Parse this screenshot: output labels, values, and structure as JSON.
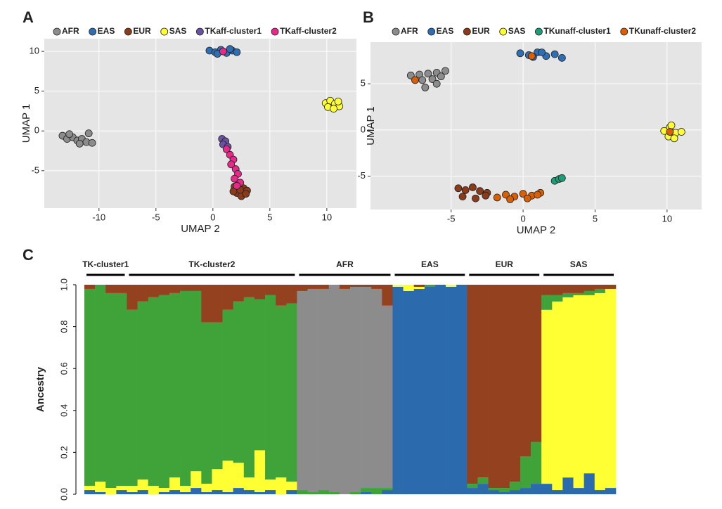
{
  "chart_data": [
    {
      "type": "scatter",
      "panel": "A",
      "xlabel": "UMAP 2",
      "ylabel": "UMAP 1",
      "grid": true,
      "xlim": [
        -14.8,
        12.6
      ],
      "ylim": [
        -9.7,
        11.6
      ],
      "xticks": [
        -10,
        -5,
        0,
        5,
        10
      ],
      "yticks": [
        -5,
        0,
        5,
        10
      ],
      "series": [
        {
          "name": "AFR",
          "color": "#8c8c8c",
          "x": [
            -13.2,
            -12.8,
            -12.3,
            -11.9,
            -11.5,
            -11.1,
            -10.9,
            -12.6,
            -11.7,
            -10.6
          ],
          "y": [
            -0.6,
            -1.0,
            -0.8,
            -1.2,
            -1.0,
            -1.4,
            -0.3,
            -0.4,
            -1.6,
            -1.5
          ]
        },
        {
          "name": "EAS",
          "color": "#2e6eb5",
          "x": [
            -0.3,
            0.2,
            0.7,
            1.2,
            1.7,
            2.1,
            0.4,
            1.5
          ],
          "y": [
            10.1,
            9.9,
            10.2,
            9.8,
            10.1,
            9.9,
            9.7,
            10.3
          ]
        },
        {
          "name": "EUR",
          "color": "#8b3a1a",
          "x": [
            1.9,
            2.3,
            2.7,
            3.0,
            2.1,
            2.5,
            2.9,
            2.4,
            1.8
          ],
          "y": [
            -7.0,
            -6.8,
            -7.2,
            -7.5,
            -7.8,
            -8.2,
            -7.9,
            -7.4,
            -7.6
          ]
        },
        {
          "name": "SAS",
          "color": "#ffff33",
          "x": [
            9.9,
            10.3,
            10.7,
            11.1,
            10.1,
            10.6,
            11.0
          ],
          "y": [
            3.5,
            3.8,
            3.4,
            3.1,
            3.0,
            2.8,
            3.7
          ]
        },
        {
          "name": "TKaff-cluster1",
          "color": "#6a51a3",
          "x": [
            0.8,
            1.1,
            0.9,
            1.3
          ],
          "y": [
            -1.0,
            -1.3,
            -1.7,
            -2.0
          ]
        },
        {
          "name": "TKaff-cluster2",
          "color": "#e7298a",
          "x": [
            1.2,
            1.5,
            1.8,
            1.6,
            2.0,
            2.2,
            1.9,
            2.4,
            2.1,
            0.9
          ],
          "y": [
            -2.3,
            -3.0,
            -3.6,
            -4.2,
            -4.8,
            -5.4,
            -6.0,
            -6.5,
            -6.9,
            10.0
          ]
        }
      ]
    },
    {
      "type": "scatter",
      "panel": "B",
      "xlabel": "UMAP 2",
      "ylabel": "UMAP 1",
      "grid": true,
      "xlim": [
        -10.6,
        12.4
      ],
      "ylim": [
        -8.6,
        9.5
      ],
      "xticks": [
        -5,
        0,
        5,
        10
      ],
      "yticks": [
        -5,
        0,
        5
      ],
      "series": [
        {
          "name": "AFR",
          "color": "#8c8c8c",
          "x": [
            -7.8,
            -7.2,
            -6.6,
            -6.0,
            -5.4,
            -7.0,
            -6.3,
            -5.7,
            -6.8,
            -6.0
          ],
          "y": [
            5.9,
            6.0,
            6.1,
            6.2,
            6.4,
            5.4,
            5.5,
            5.8,
            4.6,
            5.0
          ]
        },
        {
          "name": "EAS",
          "color": "#2e6eb5",
          "x": [
            -0.2,
            0.4,
            1.0,
            1.6,
            2.2,
            2.7,
            0.7,
            1.3
          ],
          "y": [
            8.3,
            8.1,
            8.4,
            8.0,
            8.2,
            7.8,
            7.9,
            8.4
          ]
        },
        {
          "name": "EUR",
          "color": "#8b3a1a",
          "x": [
            -4.5,
            -4.0,
            -3.5,
            -3.0,
            -2.5,
            -4.2,
            -3.3,
            -2.6
          ],
          "y": [
            -6.3,
            -6.5,
            -6.2,
            -6.6,
            -6.8,
            -7.2,
            -7.4,
            -7.1
          ]
        },
        {
          "name": "SAS",
          "color": "#ffff33",
          "x": [
            9.8,
            10.2,
            10.6,
            11.0,
            10.1,
            10.5,
            10.3
          ],
          "y": [
            -0.1,
            0.3,
            -0.3,
            -0.2,
            -0.7,
            -0.9,
            0.5
          ]
        },
        {
          "name": "TKunaff-cluster1",
          "color": "#1b9e77",
          "x": [
            2.2,
            2.5,
            2.7
          ],
          "y": [
            -5.5,
            -5.3,
            -5.2
          ]
        },
        {
          "name": "TKunaff-cluster2",
          "color": "#d95f02",
          "x": [
            -1.8,
            -1.2,
            -0.6,
            0,
            0.6,
            1.2,
            -0.9,
            0.3,
            1.0,
            0.6,
            10.2,
            -7.5
          ],
          "y": [
            -7.3,
            -7.0,
            -7.2,
            -6.9,
            -7.1,
            -6.8,
            -7.5,
            -7.4,
            -7.0,
            8.0,
            -0.2,
            5.4
          ]
        }
      ]
    },
    {
      "type": "admixture",
      "panel": "C",
      "ylabel": "Ancestry",
      "ylim": [
        0,
        1
      ],
      "yticks": [
        {
          "value": 0,
          "label": "0.0"
        },
        {
          "value": 0.2,
          "label": "0.2"
        },
        {
          "value": 0.4,
          "label": "0.4"
        },
        {
          "value": 0.6,
          "label": "0.6"
        },
        {
          "value": 0.8,
          "label": "0.8"
        },
        {
          "value": 1,
          "label": "1.0"
        }
      ],
      "colors": [
        "#2a6aad",
        "#ffff33",
        "#3fa33a",
        "#8c8c8c",
        "#94411f"
      ],
      "groups": [
        {
          "name": "TK-cluster1",
          "values": [
            [
              0.02,
              0.02,
              0.94,
              0,
              0.02
            ],
            [
              0.01,
              0.05,
              0.94,
              0,
              0
            ],
            [
              0,
              0.03,
              0.93,
              0,
              0.04
            ],
            [
              0.02,
              0.02,
              0.92,
              0,
              0.04
            ]
          ]
        },
        {
          "name": "TK-cluster2",
          "values": [
            [
              0.01,
              0.03,
              0.84,
              0,
              0.12
            ],
            [
              0.02,
              0.05,
              0.85,
              0,
              0.08
            ],
            [
              0,
              0.04,
              0.9,
              0,
              0.06
            ],
            [
              0.01,
              0.02,
              0.92,
              0,
              0.05
            ],
            [
              0.02,
              0.06,
              0.88,
              0,
              0.04
            ],
            [
              0.01,
              0.03,
              0.93,
              0,
              0.03
            ],
            [
              0.03,
              0.08,
              0.86,
              0,
              0.03
            ],
            [
              0.01,
              0.04,
              0.77,
              0,
              0.18
            ],
            [
              0.02,
              0.1,
              0.7,
              0,
              0.18
            ],
            [
              0.01,
              0.15,
              0.72,
              0,
              0.12
            ],
            [
              0.03,
              0.12,
              0.77,
              0,
              0.08
            ],
            [
              0.02,
              0.06,
              0.86,
              0,
              0.06
            ],
            [
              0.01,
              0.2,
              0.72,
              0,
              0.07
            ],
            [
              0.02,
              0.05,
              0.88,
              0,
              0.05
            ],
            [
              0,
              0.08,
              0.82,
              0,
              0.1
            ],
            [
              0.02,
              0.04,
              0.85,
              0,
              0.09
            ]
          ]
        },
        {
          "name": "AFR",
          "values": [
            [
              0,
              0,
              0.02,
              0.95,
              0.03
            ],
            [
              0,
              0,
              0.01,
              0.97,
              0.02
            ],
            [
              0,
              0,
              0.02,
              0.96,
              0.02
            ],
            [
              0,
              0,
              0.01,
              0.99,
              0
            ],
            [
              0,
              0,
              0,
              0.98,
              0.02
            ],
            [
              0,
              0,
              0.01,
              0.98,
              0.01
            ],
            [
              0.01,
              0,
              0.02,
              0.96,
              0.01
            ],
            [
              0,
              0,
              0.03,
              0.95,
              0.02
            ],
            [
              0.02,
              0,
              0.01,
              0.87,
              0.1
            ]
          ]
        },
        {
          "name": "EAS",
          "values": [
            [
              0.99,
              0.01,
              0,
              0,
              0
            ],
            [
              0.97,
              0.03,
              0,
              0,
              0
            ],
            [
              0.98,
              0.01,
              0,
              0,
              0.01
            ],
            [
              0.99,
              0,
              0.01,
              0,
              0
            ],
            [
              1,
              0,
              0,
              0,
              0
            ],
            [
              0.99,
              0.01,
              0,
              0,
              0
            ],
            [
              1,
              0,
              0,
              0,
              0
            ]
          ]
        },
        {
          "name": "EUR",
          "values": [
            [
              0.03,
              0,
              0.02,
              0,
              0.95
            ],
            [
              0.05,
              0,
              0.03,
              0,
              0.92
            ],
            [
              0.02,
              0,
              0.01,
              0,
              0.97
            ],
            [
              0.01,
              0,
              0.02,
              0,
              0.97
            ],
            [
              0.02,
              0,
              0.04,
              0,
              0.94
            ],
            [
              0.03,
              0,
              0.15,
              0,
              0.82
            ],
            [
              0.05,
              0,
              0.2,
              0,
              0.75
            ]
          ]
        },
        {
          "name": "SAS",
          "values": [
            [
              0.05,
              0.83,
              0.07,
              0,
              0.05
            ],
            [
              0.02,
              0.9,
              0.03,
              0,
              0.05
            ],
            [
              0.08,
              0.86,
              0.02,
              0,
              0.04
            ],
            [
              0.03,
              0.92,
              0.01,
              0,
              0.04
            ],
            [
              0.1,
              0.85,
              0.02,
              0,
              0.03
            ],
            [
              0.02,
              0.94,
              0.02,
              0,
              0.02
            ],
            [
              0.03,
              0.95,
              0,
              0,
              0.02
            ]
          ]
        }
      ]
    }
  ]
}
